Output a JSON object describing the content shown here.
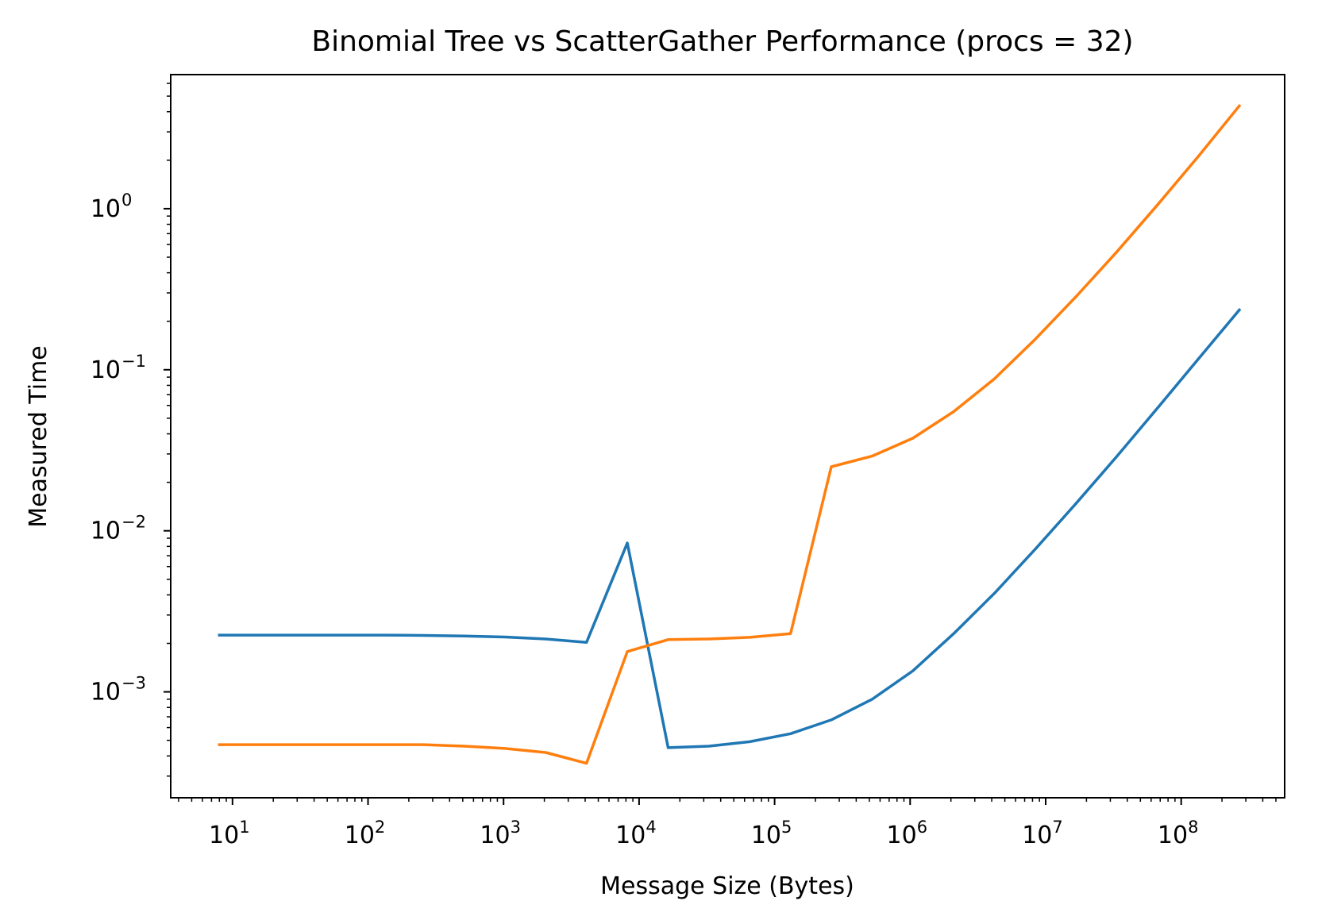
{
  "chart_data": {
    "type": "line",
    "title": "Binomial Tree vs ScatterGather Performance (procs = 32)",
    "xlabel": "Message Size (Bytes)",
    "ylabel": "Measured Time",
    "xscale": "log",
    "yscale": "log",
    "xlim": [
      3.5,
      580000000
    ],
    "ylim": [
      0.00022,
      6.8
    ],
    "grid": false,
    "legend": "none",
    "x_ticks": [
      10,
      100,
      1000,
      10000,
      100000,
      1000000,
      10000000,
      100000000
    ],
    "x_tick_labels": [
      [
        "10",
        "1"
      ],
      [
        "10",
        "2"
      ],
      [
        "10",
        "3"
      ],
      [
        "10",
        "4"
      ],
      [
        "10",
        "5"
      ],
      [
        "10",
        "6"
      ],
      [
        "10",
        "7"
      ],
      [
        "10",
        "8"
      ]
    ],
    "y_ticks": [
      0.001,
      0.01,
      0.1,
      1
    ],
    "y_tick_labels": [
      [
        "10",
        "−3"
      ],
      [
        "10",
        "−2"
      ],
      [
        "10",
        "−1"
      ],
      [
        "10",
        "0"
      ]
    ],
    "x": [
      8,
      16,
      32,
      64,
      128,
      256,
      512,
      1024,
      2048,
      4096,
      8192,
      16384,
      32768,
      65536,
      131072,
      262144,
      524288,
      1048576,
      2097152,
      4194304,
      8388608,
      16777216,
      33554432,
      67108864,
      134217728,
      268435456
    ],
    "series": [
      {
        "color": "#1f77b4",
        "values": [
          0.00225,
          0.00225,
          0.00225,
          0.00225,
          0.00225,
          0.00224,
          0.00222,
          0.00219,
          0.00213,
          0.00203,
          0.0084,
          0.00045,
          0.00046,
          0.00049,
          0.00055,
          0.00067,
          0.0009,
          0.00135,
          0.0023,
          0.0041,
          0.0077,
          0.0148,
          0.029,
          0.058,
          0.117,
          0.235
        ]
      },
      {
        "color": "#ff7f0e",
        "values": [
          0.00047,
          0.00047,
          0.00047,
          0.00047,
          0.00047,
          0.00047,
          0.00046,
          0.000445,
          0.00042,
          0.00036,
          0.00178,
          0.00211,
          0.00213,
          0.00218,
          0.0023,
          0.025,
          0.0291,
          0.0376,
          0.055,
          0.088,
          0.155,
          0.285,
          0.54,
          1.06,
          2.12,
          4.35
        ]
      }
    ]
  }
}
